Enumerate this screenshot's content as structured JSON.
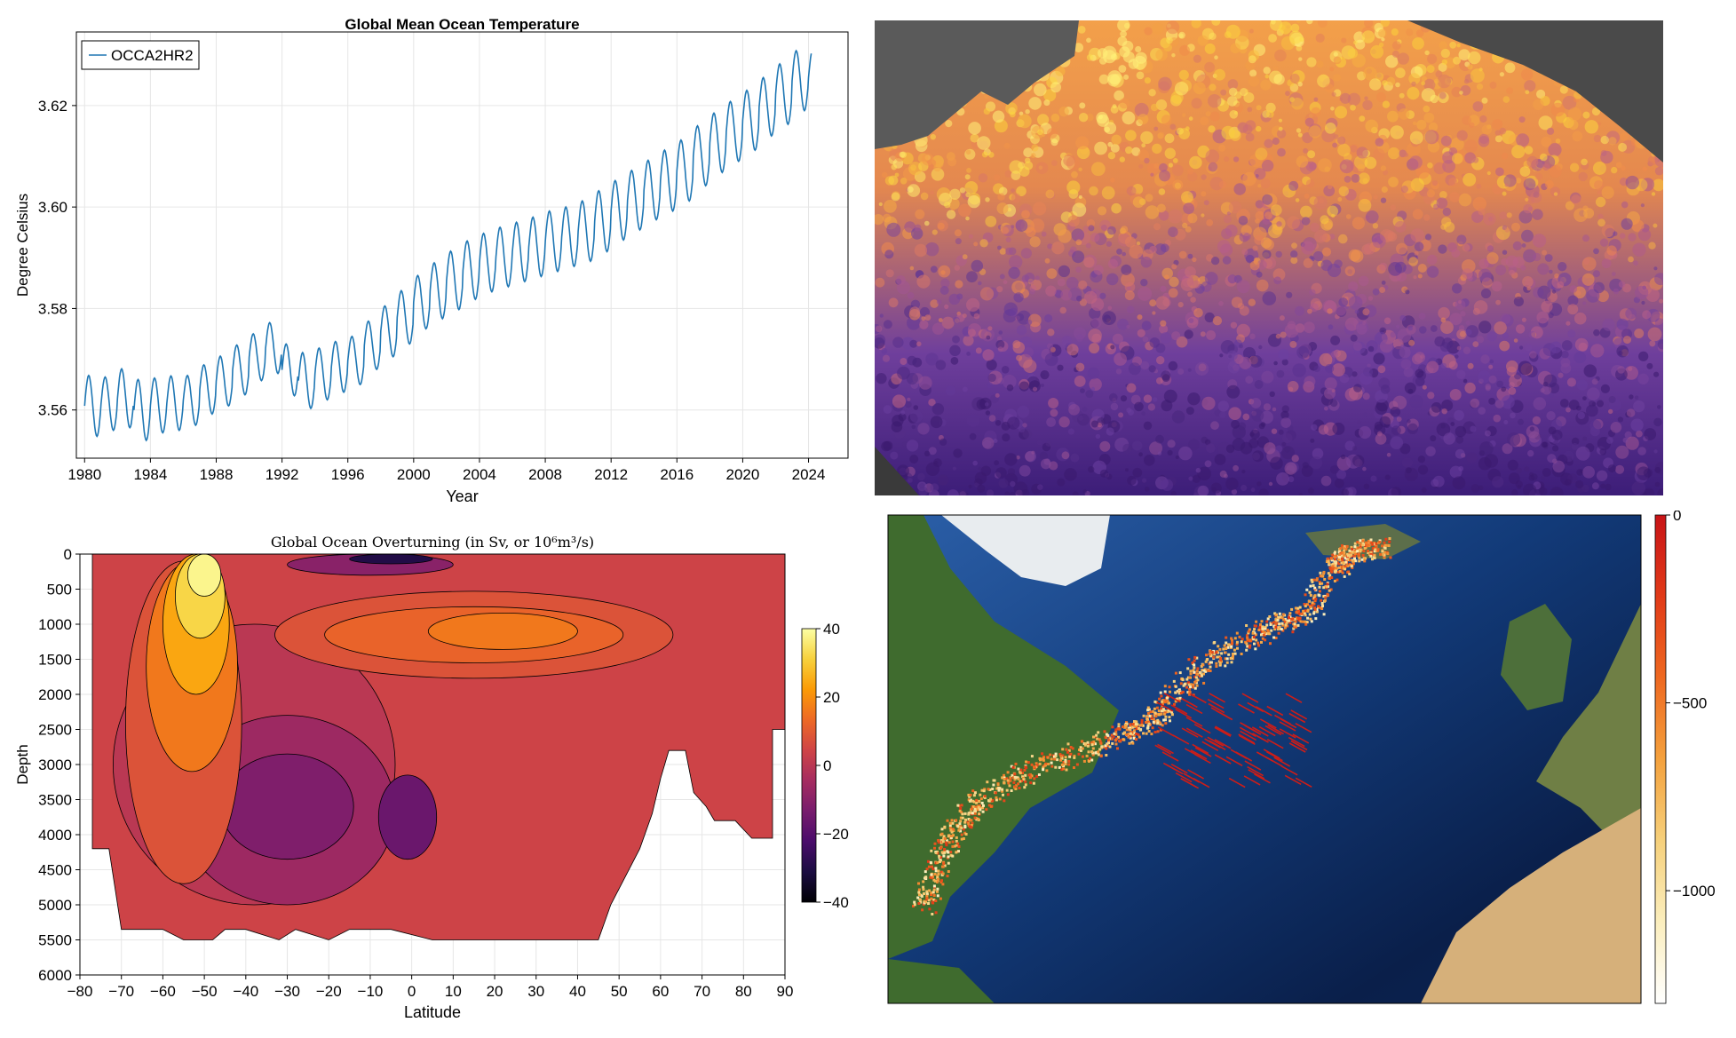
{
  "chart_data": [
    {
      "type": "line",
      "title": "Global Mean Ocean Temperature",
      "xlabel": "Year",
      "ylabel": "Degree Celsius",
      "xlim": [
        1979.5,
        2026.4
      ],
      "ylim": [
        3.5505,
        3.6345
      ],
      "x_ticks": [
        1980,
        1984,
        1988,
        1992,
        1996,
        2000,
        2004,
        2008,
        2012,
        2016,
        2020,
        2024
      ],
      "y_ticks": [
        3.56,
        3.58,
        3.6,
        3.62
      ],
      "y_tick_labels": [
        "3.56",
        "3.58",
        "3.60",
        "3.62"
      ],
      "grid": true,
      "legend_position": "top-left",
      "series": [
        {
          "name": "OCCA2HR2",
          "color": "#1f77b4",
          "annual_max": [
            3.5668,
            3.5665,
            3.5681,
            3.566,
            3.5663,
            3.5667,
            3.5668,
            3.5689,
            3.5706,
            3.5728,
            3.575,
            3.5772,
            3.573,
            3.5713,
            3.5722,
            3.5735,
            3.5745,
            3.5775,
            3.5805,
            3.5835,
            3.5865,
            3.589,
            3.5913,
            3.5933,
            3.5948,
            3.596,
            3.597,
            3.598,
            3.5992,
            3.6,
            3.6012,
            3.6032,
            3.6052,
            3.6072,
            3.6092,
            3.6112,
            3.6132,
            3.616,
            3.6185,
            3.6208,
            3.623,
            3.6255,
            3.6282,
            3.6308,
            3.631
          ],
          "annual_min": [
            3.5548,
            3.556,
            3.5565,
            3.554,
            3.5555,
            3.556,
            3.557,
            3.5592,
            3.5608,
            3.563,
            3.5658,
            3.5672,
            3.5628,
            3.5603,
            3.562,
            3.5635,
            3.565,
            3.568,
            3.5705,
            3.573,
            3.576,
            3.578,
            3.5798,
            3.5818,
            3.5833,
            3.5843,
            3.5853,
            3.5863,
            3.5873,
            3.5883,
            3.5893,
            3.5912,
            3.5935,
            3.5955,
            3.5975,
            3.5992,
            3.6012,
            3.6042,
            3.6068,
            3.609,
            3.6112,
            3.614,
            3.6163,
            3.619,
            3.62
          ]
        }
      ]
    },
    {
      "type": "heatmap",
      "title": "Global Ocean Overturning (in Sv, or 10⁶m³/s)",
      "xlabel": "Latitude",
      "ylabel": "Depth",
      "xlim": [
        -80,
        90
      ],
      "ylim": [
        6000,
        0
      ],
      "x_ticks": [
        -80,
        -70,
        -60,
        -50,
        -40,
        -30,
        -20,
        -10,
        0,
        10,
        20,
        30,
        40,
        50,
        60,
        70,
        80,
        90
      ],
      "x_tick_labels": [
        "−80",
        "−70",
        "−60",
        "−50",
        "−40",
        "−30",
        "−20",
        "−10",
        "0",
        "10",
        "20",
        "30",
        "40",
        "50",
        "60",
        "70",
        "80",
        "90"
      ],
      "y_ticks": [
        0,
        500,
        1000,
        1500,
        2000,
        2500,
        3000,
        3500,
        4000,
        4500,
        5000,
        5500,
        6000
      ],
      "y_tick_labels": [
        "0",
        "500",
        "1000",
        "1500",
        "2000",
        "2500",
        "3000",
        "3500",
        "4000",
        "4500",
        "5000",
        "5500",
        "6000"
      ],
      "colorbar": {
        "range": [
          -40,
          40
        ],
        "ticks": [
          40,
          20,
          0,
          -20,
          -40
        ],
        "tick_labels": [
          "40",
          "20",
          "0",
          "−20",
          "−40"
        ],
        "colormap": [
          "#000004",
          "#1b0c41",
          "#4a0c6b",
          "#781c6d",
          "#a52c60",
          "#cf4446",
          "#ed6925",
          "#fb9b06",
          "#f7d13d",
          "#fcffa4"
        ]
      },
      "features": [
        {
          "label": "southern upwelling cell",
          "lat": -52,
          "depth": 400,
          "value": 40
        },
        {
          "label": "mid-depth northward cell",
          "lat": 20,
          "depth": 1200,
          "value": 15
        },
        {
          "label": "abyssal cell (west)",
          "lat": -28,
          "depth": 3700,
          "value": -15
        },
        {
          "label": "abyssal cell (east)",
          "lat": 0,
          "depth": 3800,
          "value": -14
        },
        {
          "label": "surface cell",
          "lat": -5,
          "depth": 80,
          "value": -40
        }
      ]
    },
    {
      "type": "heatmap",
      "title": "",
      "description_role": "ocean surface field map (North Pacific)",
      "colormap": [
        "#3a1a6e",
        "#6b3fa0",
        "#b95f8a",
        "#f08a4b",
        "#fbd33b",
        "#fff27a"
      ]
    },
    {
      "type": "scatter",
      "title": "",
      "description_role": "particle trajectories colored by depth over North Atlantic map",
      "colorbar": {
        "range": [
          -1300,
          0
        ],
        "ticks": [
          0,
          -500,
          -1000
        ],
        "tick_labels": [
          "0",
          "−500",
          "−1000"
        ],
        "colormap": [
          "#ffffff",
          "#fbeebd",
          "#f6d07b",
          "#f4a13d",
          "#ee6820",
          "#e13a18",
          "#c81417"
        ]
      }
    }
  ]
}
